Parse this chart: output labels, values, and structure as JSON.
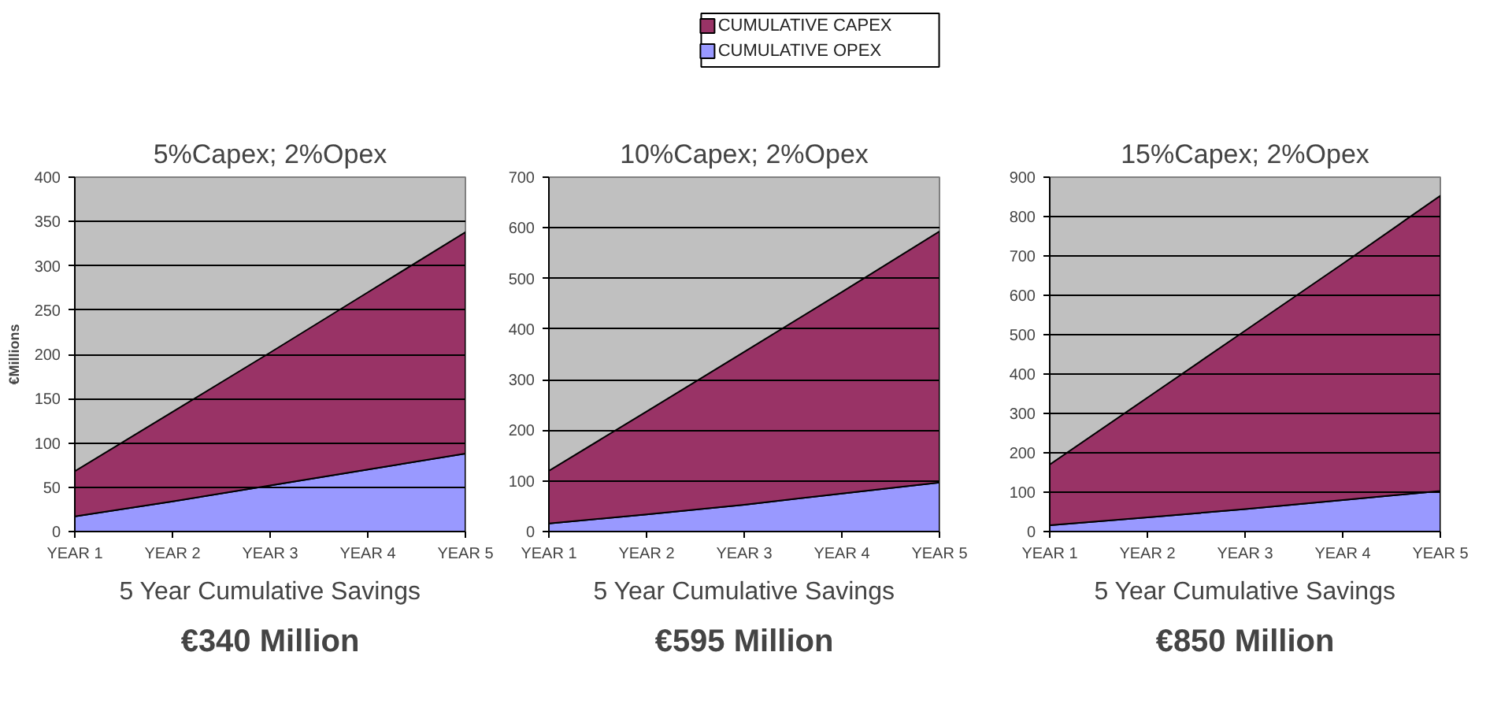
{
  "chart_data": [
    {
      "type": "area",
      "title": "5%Capex; 2%Opex",
      "ylabel": "€Millions",
      "stacked": true,
      "grid": "y",
      "legend": false,
      "categories": [
        "YEAR 1",
        "YEAR 2",
        "YEAR 3",
        "YEAR 4",
        "YEAR 5"
      ],
      "ylim": [
        0,
        400
      ],
      "yticks": [
        0,
        50,
        100,
        150,
        200,
        250,
        300,
        350,
        400
      ],
      "series": [
        {
          "color": "#9999ff",
          "values": [
            17,
            34,
            52,
            70,
            88
          ]
        },
        {
          "color": "#993366",
          "values": [
            51,
            101,
            150,
            200,
            250
          ]
        }
      ],
      "annotations": [
        "5 Year Cumulative Savings",
        "€340 Million"
      ]
    },
    {
      "type": "area",
      "title": "10%Capex; 2%Opex",
      "stacked": true,
      "grid": "y",
      "legend": "top",
      "categories": [
        "YEAR 1",
        "YEAR 2",
        "YEAR 3",
        "YEAR 4",
        "YEAR 5"
      ],
      "ylim": [
        0,
        700
      ],
      "yticks": [
        0,
        100,
        200,
        300,
        400,
        500,
        600,
        700
      ],
      "series": [
        {
          "name": "CUMULATIVE OPEX",
          "color": "#9999ff",
          "values": [
            16,
            34,
            53,
            75,
            97
          ]
        },
        {
          "name": "CUMULATIVE CAPEX",
          "color": "#993366",
          "values": [
            104,
            203,
            302,
            398,
            496
          ]
        }
      ],
      "annotations": [
        "5 Year Cumulative Savings",
        "€595 Million"
      ]
    },
    {
      "type": "area",
      "title": "15%Capex; 2%Opex",
      "stacked": true,
      "grid": "y",
      "legend": false,
      "categories": [
        "YEAR 1",
        "YEAR 2",
        "YEAR 3",
        "YEAR 4",
        "YEAR 5"
      ],
      "ylim": [
        0,
        900
      ],
      "yticks": [
        0,
        100,
        200,
        300,
        400,
        500,
        600,
        700,
        800,
        900
      ],
      "series": [
        {
          "color": "#9999ff",
          "values": [
            16,
            36,
            57,
            80,
            103
          ]
        },
        {
          "color": "#993366",
          "values": [
            154,
            304,
            453,
            600,
            750
          ]
        }
      ],
      "annotations": [
        "5 Year Cumulative Savings",
        "€850 Million"
      ]
    }
  ]
}
